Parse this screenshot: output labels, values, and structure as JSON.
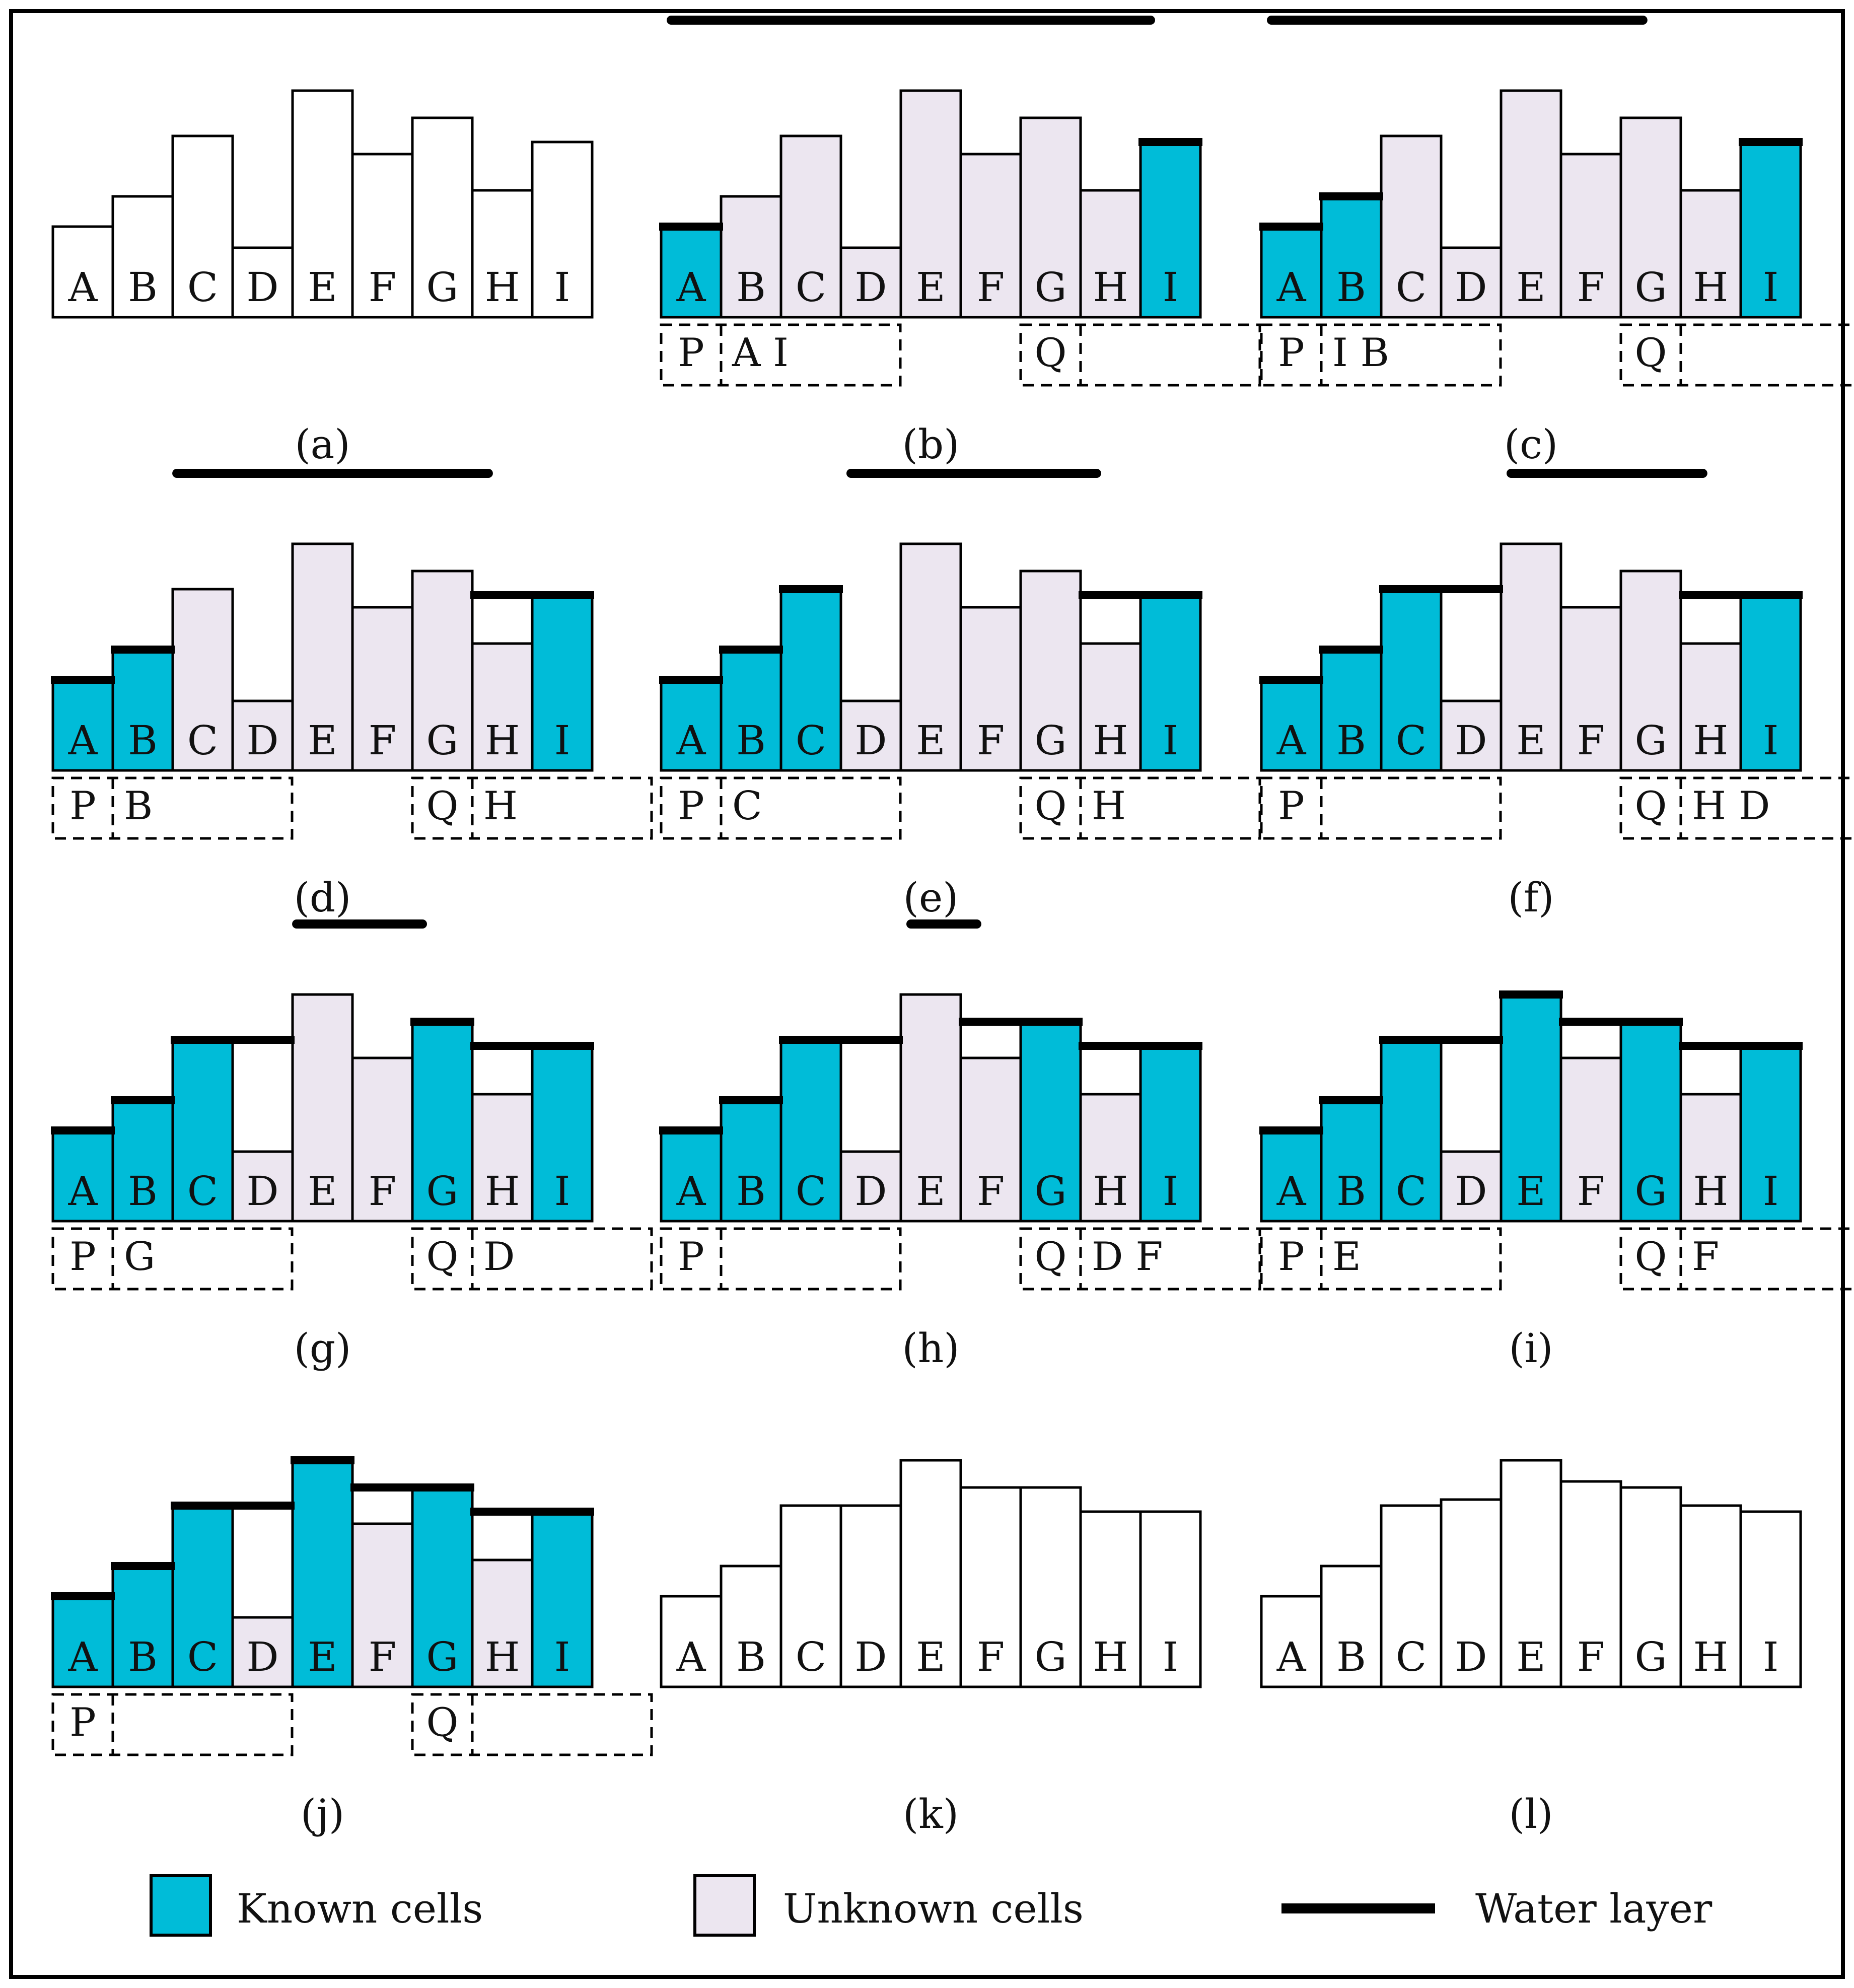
{
  "figure": {
    "colors": {
      "known": "#00bcd8",
      "unknown": "#ece6f0",
      "empty": "#ffffff",
      "stroke": "#000000"
    },
    "cell_labels": [
      "A",
      "B",
      "C",
      "D",
      "E",
      "F",
      "G",
      "H",
      "I"
    ],
    "original_heights": [
      3.0,
      4.0,
      6.0,
      2.3,
      7.5,
      5.4,
      6.6,
      4.2,
      5.8
    ],
    "panels": [
      {
        "caption": "(a)",
        "states": "EEEEEEEEE",
        "heights": [
          3.0,
          4.0,
          6.0,
          2.3,
          7.5,
          5.4,
          6.6,
          4.2,
          5.8
        ],
        "water": [],
        "flood": null,
        "queue": null
      },
      {
        "caption": "(b)",
        "states": "KUUUUUUUK",
        "heights": [
          3.0,
          4.0,
          6.0,
          2.3,
          7.5,
          5.4,
          6.6,
          4.2,
          5.8
        ],
        "water": [
          {
            "from": 0,
            "to": 0,
            "level": 3.0
          },
          {
            "from": 8,
            "to": 8,
            "level": 5.8
          }
        ],
        "flood": {
          "from": 0,
          "to": 8
        },
        "queue": {
          "p_label": "P",
          "p_items": "A I",
          "q_label": "Q",
          "q_items": ""
        }
      },
      {
        "caption": "(c)",
        "states": "KKUUUUUUK",
        "heights": [
          3.0,
          4.0,
          6.0,
          2.3,
          7.5,
          5.4,
          6.6,
          4.2,
          5.8
        ],
        "water": [
          {
            "from": 0,
            "to": 0,
            "level": 3.0
          },
          {
            "from": 1,
            "to": 1,
            "level": 4.0
          },
          {
            "from": 8,
            "to": 8,
            "level": 5.8
          }
        ],
        "flood": {
          "from": 0,
          "to": 6.2
        },
        "queue": {
          "p_label": "P",
          "p_items": "I B",
          "q_label": "Q",
          "q_items": ""
        }
      },
      {
        "caption": "(d)",
        "states": "KKUUUUUUK",
        "heights": [
          3.0,
          4.0,
          6.0,
          2.3,
          7.5,
          5.4,
          6.6,
          4.2,
          5.8
        ],
        "water": [
          {
            "from": 0,
            "to": 0,
            "level": 3.0
          },
          {
            "from": 1,
            "to": 1,
            "level": 4.0
          },
          {
            "from": 7,
            "to": 8,
            "level": 5.8
          }
        ],
        "flood": {
          "from": 1.9,
          "to": 7.1
        },
        "queue": {
          "p_label": "P",
          "p_items": "B",
          "q_label": "Q",
          "q_items": "H"
        }
      },
      {
        "caption": "(e)",
        "states": "KKKUUUUUK",
        "heights": [
          3.0,
          4.0,
          6.0,
          2.3,
          7.5,
          5.4,
          6.6,
          4.2,
          5.8
        ],
        "water": [
          {
            "from": 0,
            "to": 0,
            "level": 3.0
          },
          {
            "from": 1,
            "to": 1,
            "level": 4.0
          },
          {
            "from": 2,
            "to": 2,
            "level": 6.0
          },
          {
            "from": 7,
            "to": 8,
            "level": 5.8
          }
        ],
        "flood": {
          "from": 3.0,
          "to": 7.1
        },
        "queue": {
          "p_label": "P",
          "p_items": "C",
          "q_label": "Q",
          "q_items": "H"
        }
      },
      {
        "caption": "(f)",
        "states": "KKKUUUUUK",
        "heights": [
          3.0,
          4.0,
          6.0,
          2.3,
          7.5,
          5.4,
          6.6,
          4.2,
          5.8
        ],
        "water": [
          {
            "from": 0,
            "to": 0,
            "level": 3.0
          },
          {
            "from": 1,
            "to": 1,
            "level": 4.0
          },
          {
            "from": 2,
            "to": 3,
            "level": 6.0
          },
          {
            "from": 7,
            "to": 8,
            "level": 5.8
          }
        ],
        "flood": {
          "from": 4.0,
          "to": 7.2
        },
        "queue": {
          "p_label": "P",
          "p_items": "",
          "q_label": "Q",
          "q_items": "H D"
        }
      },
      {
        "caption": "(g)",
        "states": "KKKUUUKUK",
        "heights": [
          3.0,
          4.0,
          6.0,
          2.3,
          7.5,
          5.4,
          6.6,
          4.2,
          5.8
        ],
        "water": [
          {
            "from": 0,
            "to": 0,
            "level": 3.0
          },
          {
            "from": 1,
            "to": 1,
            "level": 4.0
          },
          {
            "from": 2,
            "to": 3,
            "level": 6.0
          },
          {
            "from": 6,
            "to": 6,
            "level": 6.6
          },
          {
            "from": 7,
            "to": 8,
            "level": 5.8
          }
        ],
        "flood": {
          "from": 3.9,
          "to": 6.0
        },
        "queue": {
          "p_label": "P",
          "p_items": "G",
          "q_label": "Q",
          "q_items": "D"
        }
      },
      {
        "caption": "(h)",
        "states": "KKKUUUKUK",
        "heights": [
          3.0,
          4.0,
          6.0,
          2.3,
          7.5,
          5.4,
          6.6,
          4.2,
          5.8
        ],
        "water": [
          {
            "from": 0,
            "to": 0,
            "level": 3.0
          },
          {
            "from": 1,
            "to": 1,
            "level": 4.0
          },
          {
            "from": 2,
            "to": 3,
            "level": 6.0
          },
          {
            "from": 5,
            "to": 6,
            "level": 6.6
          },
          {
            "from": 7,
            "to": 8,
            "level": 5.8
          }
        ],
        "flood": {
          "from": 4.0,
          "to": 5.1
        },
        "queue": {
          "p_label": "P",
          "p_items": "",
          "q_label": "Q",
          "q_items": "D F"
        }
      },
      {
        "caption": "(i)",
        "states": "KKKUKUKUK",
        "heights": [
          3.0,
          4.0,
          6.0,
          2.3,
          7.5,
          5.4,
          6.6,
          4.2,
          5.8
        ],
        "water": [
          {
            "from": 0,
            "to": 0,
            "level": 3.0
          },
          {
            "from": 1,
            "to": 1,
            "level": 4.0
          },
          {
            "from": 2,
            "to": 3,
            "level": 6.0
          },
          {
            "from": 4,
            "to": 4,
            "level": 7.5
          },
          {
            "from": 5,
            "to": 6,
            "level": 6.6
          },
          {
            "from": 7,
            "to": 8,
            "level": 5.8
          }
        ],
        "flood": null,
        "queue": {
          "p_label": "P",
          "p_items": "E",
          "q_label": "Q",
          "q_items": "F"
        }
      },
      {
        "caption": "(j)",
        "states": "KKKUKUKUK",
        "heights": [
          3.0,
          4.0,
          6.0,
          2.3,
          7.5,
          5.4,
          6.6,
          4.2,
          5.8
        ],
        "water": [
          {
            "from": 0,
            "to": 0,
            "level": 3.0
          },
          {
            "from": 1,
            "to": 1,
            "level": 4.0
          },
          {
            "from": 2,
            "to": 3,
            "level": 6.0
          },
          {
            "from": 4,
            "to": 4,
            "level": 7.5
          },
          {
            "from": 5,
            "to": 6,
            "level": 6.6
          },
          {
            "from": 7,
            "to": 8,
            "level": 5.8
          }
        ],
        "flood": null,
        "queue": {
          "p_label": "P",
          "p_items": "",
          "q_label": "Q",
          "q_items": ""
        }
      },
      {
        "caption": "(k)",
        "states": "EEEEEEEEE",
        "heights": [
          3.0,
          4.0,
          6.0,
          6.0,
          7.5,
          6.6,
          6.6,
          5.8,
          5.8
        ],
        "water": [],
        "flood": null,
        "queue": null
      },
      {
        "caption": "(l)",
        "states": "EEEEEEEEE",
        "heights": [
          3.0,
          4.0,
          6.0,
          6.2,
          7.5,
          6.8,
          6.6,
          6.0,
          5.8
        ],
        "water": [],
        "flood": null,
        "queue": null
      }
    ],
    "legend": {
      "known": "Known cells",
      "unknown": "Unknown cells",
      "water": "Water layer"
    }
  }
}
